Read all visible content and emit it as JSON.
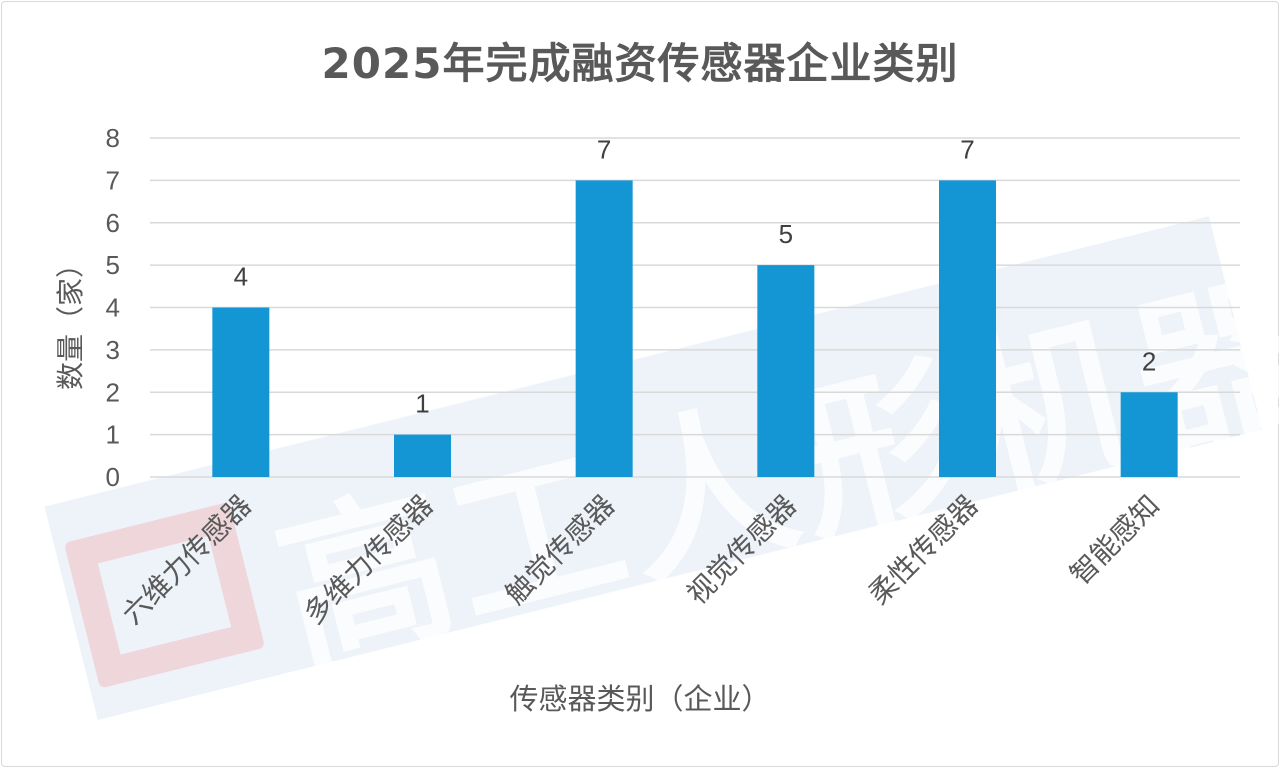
{
  "chart_data": {
    "type": "bar",
    "title": "2025年完成融资传感器企业类别",
    "xlabel": "传感器类别（企业）",
    "ylabel": "数量（家）",
    "categories": [
      "六维力传感器",
      "多维力传感器",
      "触觉传感器",
      "视觉传感器",
      "柔性传感器",
      "智能感知"
    ],
    "values": [
      4,
      1,
      7,
      5,
      7,
      2
    ],
    "ylim": [
      0,
      8
    ],
    "yticks": [
      0,
      1,
      2,
      3,
      4,
      5,
      6,
      7,
      8
    ],
    "grid": true,
    "data_labels": true,
    "colors": {
      "bar": "#1496d4",
      "grid": "#d9d9d9",
      "text": "#595959"
    }
  },
  "watermark": {
    "text": "高工人形机器人"
  }
}
